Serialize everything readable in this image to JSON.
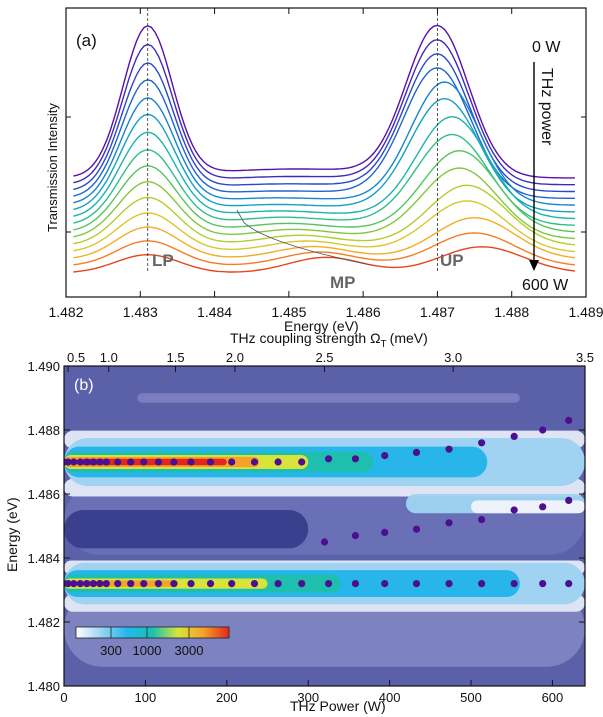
{
  "chart_data": [
    {
      "type": "line",
      "panel_label": "(a)",
      "xlabel": "Energy (eV)",
      "ylabel": "Transmission Intensity",
      "xlim": [
        1.482,
        1.489
      ],
      "x_ticks": [
        "1.482",
        "1.483",
        "1.484",
        "1.485",
        "1.486",
        "1.487",
        "1.488",
        "1.489"
      ],
      "x_tick_values": [
        1.482,
        1.483,
        1.484,
        1.485,
        1.486,
        1.487,
        1.488,
        1.489
      ],
      "annotations": {
        "lp": "LP",
        "mp": "MP",
        "up": "UP",
        "power_start": "0 W",
        "power_end": "600 W",
        "arrow_label": "THz power"
      },
      "reference_lines_x": [
        1.4831,
        1.487
      ],
      "series_count": 15,
      "series_colors": [
        "#5a10a8",
        "#3f2bb8",
        "#2c48c8",
        "#1f64d2",
        "#1784cf",
        "#14a0c4",
        "#1ab3ad",
        "#2fbe8a",
        "#56c45e",
        "#83c83c",
        "#b3cd2c",
        "#dac72a",
        "#f2ad25",
        "#f67c22",
        "#e8451d"
      ],
      "series_peaks": [
        {
          "lp": 1.0,
          "up": 1.0,
          "lp_e": 1.4831,
          "up_e": 1.487
        },
        {
          "lp": 0.93,
          "up": 0.96,
          "lp_e": 1.4831,
          "up_e": 1.487
        },
        {
          "lp": 0.86,
          "up": 0.92,
          "lp_e": 1.4831,
          "up_e": 1.487
        },
        {
          "lp": 0.8,
          "up": 0.88,
          "lp_e": 1.4831,
          "up_e": 1.487
        },
        {
          "lp": 0.73,
          "up": 0.84,
          "lp_e": 1.4831,
          "up_e": 1.4871
        },
        {
          "lp": 0.67,
          "up": 0.78,
          "lp_e": 1.4831,
          "up_e": 1.4871
        },
        {
          "lp": 0.6,
          "up": 0.71,
          "lp_e": 1.4831,
          "up_e": 1.4872
        },
        {
          "lp": 0.53,
          "up": 0.64,
          "lp_e": 1.4831,
          "up_e": 1.4872
        },
        {
          "lp": 0.47,
          "up": 0.58,
          "lp_e": 1.4831,
          "up_e": 1.4873
        },
        {
          "lp": 0.41,
          "up": 0.51,
          "lp_e": 1.4831,
          "up_e": 1.4873
        },
        {
          "lp": 0.35,
          "up": 0.44,
          "lp_e": 1.4831,
          "up_e": 1.4874
        },
        {
          "lp": 0.29,
          "up": 0.38,
          "lp_e": 1.4831,
          "up_e": 1.4874
        },
        {
          "lp": 0.24,
          "up": 0.31,
          "lp_e": 1.4831,
          "up_e": 1.4875
        },
        {
          "lp": 0.19,
          "up": 0.25,
          "lp_e": 1.4831,
          "up_e": 1.4875
        },
        {
          "lp": 0.14,
          "up": 0.2,
          "lp_e": 1.4831,
          "up_e": 1.4876
        }
      ]
    },
    {
      "type": "heatmap",
      "panel_label": "(b)",
      "xlabel": "THz Power (W)",
      "ylabel": "Energy (eV)",
      "top_xlabel_main": "THz coupling strength Ω",
      "top_xlabel_sub": "T",
      "top_xlabel_unit": "(meV)",
      "xlim": [
        0,
        640
      ],
      "ylim": [
        1.48,
        1.49
      ],
      "x_ticks": [
        "0",
        "100",
        "200",
        "300",
        "400",
        "500",
        "600"
      ],
      "x_tick_values": [
        0,
        100,
        200,
        300,
        400,
        500,
        600
      ],
      "y_ticks": [
        "1.480",
        "1.482",
        "1.484",
        "1.486",
        "1.488",
        "1.490"
      ],
      "y_tick_values": [
        1.48,
        1.482,
        1.484,
        1.486,
        1.488,
        1.49
      ],
      "top_ticks": [
        "0.5",
        "1.0",
        "1.5",
        "2.0",
        "2.5",
        "3.0",
        "3.5"
      ],
      "top_tick_positions_power": [
        5,
        55,
        137,
        210,
        320,
        478,
        640
      ],
      "colorbar_labels": [
        "300",
        "1000",
        "3000"
      ],
      "colorbar_colors": [
        "#ffffff",
        "#9ad4f2",
        "#22b8ee",
        "#19c1b3",
        "#d9e43a",
        "#f6a12a",
        "#e2271e"
      ],
      "points_up": [
        [
          0,
          1.487
        ],
        [
          5,
          1.487
        ],
        [
          12,
          1.487
        ],
        [
          20,
          1.487
        ],
        [
          28,
          1.487
        ],
        [
          36,
          1.487
        ],
        [
          44,
          1.487
        ],
        [
          52,
          1.487
        ],
        [
          66,
          1.487
        ],
        [
          82,
          1.487
        ],
        [
          98,
          1.487
        ],
        [
          116,
          1.487
        ],
        [
          135,
          1.487
        ],
        [
          156,
          1.487
        ],
        [
          180,
          1.487
        ],
        [
          206,
          1.487
        ],
        [
          234,
          1.487
        ],
        [
          263,
          1.487
        ],
        [
          292,
          1.487
        ],
        [
          325,
          1.4871
        ],
        [
          358,
          1.4871
        ],
        [
          394,
          1.4872
        ],
        [
          433,
          1.4873
        ],
        [
          473,
          1.4874
        ],
        [
          513,
          1.4876
        ],
        [
          553,
          1.4878
        ],
        [
          588,
          1.488
        ],
        [
          620,
          1.4883
        ]
      ],
      "points_lp": [
        [
          0,
          1.4832
        ],
        [
          5,
          1.4832
        ],
        [
          12,
          1.4832
        ],
        [
          20,
          1.4832
        ],
        [
          28,
          1.4832
        ],
        [
          36,
          1.4832
        ],
        [
          44,
          1.4832
        ],
        [
          52,
          1.4832
        ],
        [
          66,
          1.4832
        ],
        [
          82,
          1.4832
        ],
        [
          98,
          1.4832
        ],
        [
          116,
          1.4832
        ],
        [
          135,
          1.4832
        ],
        [
          156,
          1.4832
        ],
        [
          180,
          1.4832
        ],
        [
          206,
          1.4832
        ],
        [
          234,
          1.4832
        ],
        [
          263,
          1.4832
        ],
        [
          292,
          1.4832
        ],
        [
          325,
          1.4832
        ],
        [
          358,
          1.4832
        ],
        [
          394,
          1.4832
        ],
        [
          433,
          1.4832
        ],
        [
          473,
          1.4832
        ],
        [
          513,
          1.4832
        ],
        [
          553,
          1.4832
        ],
        [
          588,
          1.4832
        ],
        [
          620,
          1.4832
        ]
      ],
      "points_mp": [
        [
          320,
          1.4845
        ],
        [
          358,
          1.4847
        ],
        [
          394,
          1.4848
        ],
        [
          433,
          1.4849
        ],
        [
          473,
          1.4851
        ],
        [
          513,
          1.4852
        ],
        [
          553,
          1.4855
        ],
        [
          588,
          1.4856
        ],
        [
          620,
          1.4858
        ]
      ]
    }
  ]
}
